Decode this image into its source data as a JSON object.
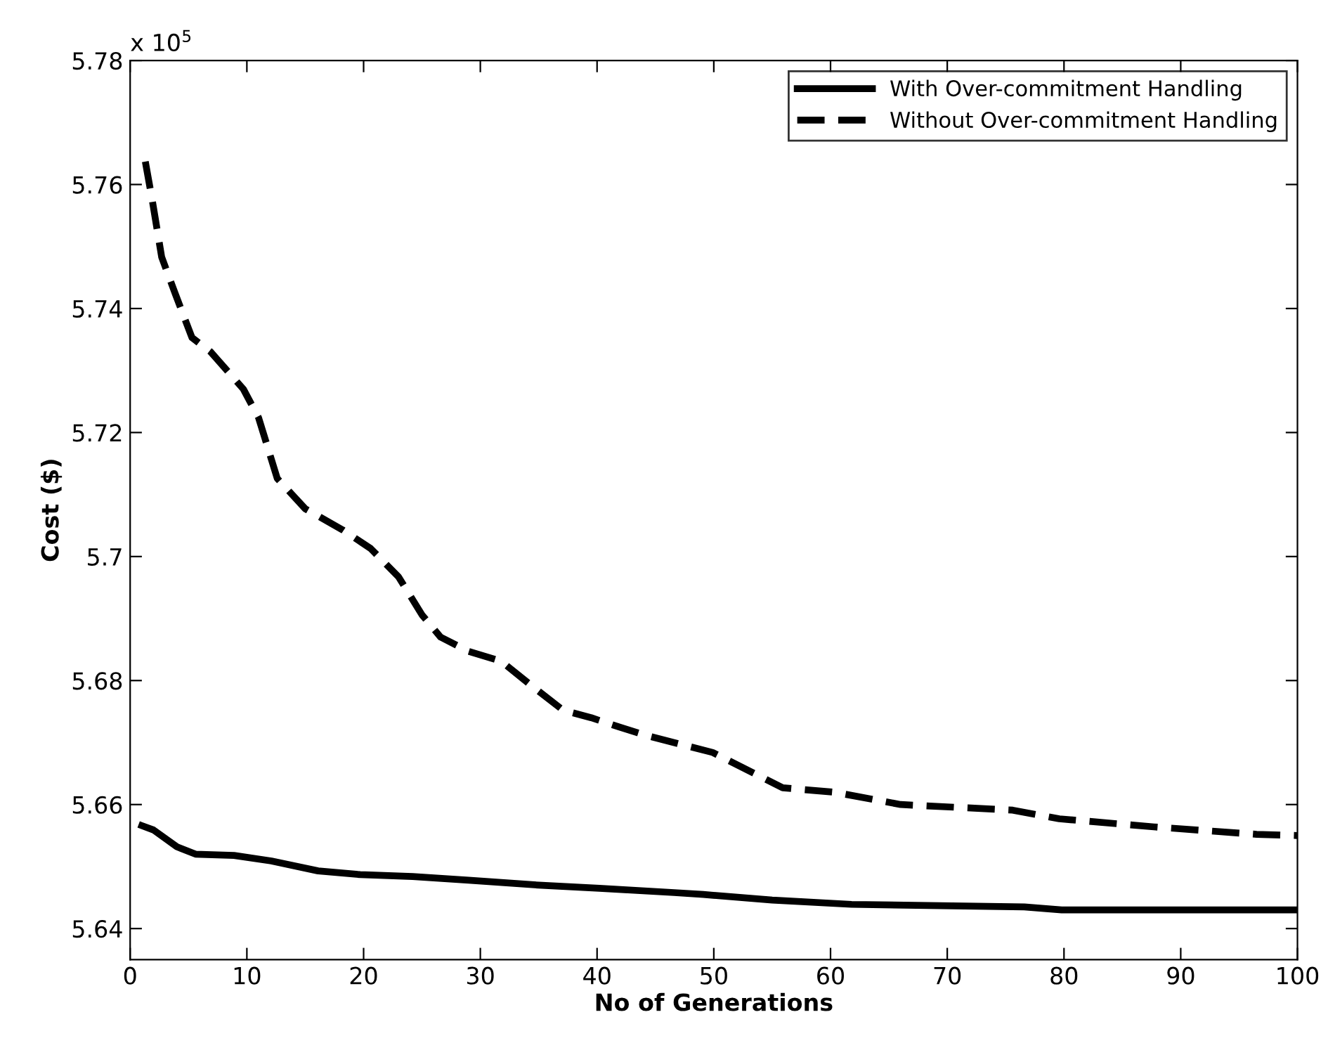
{
  "chart_data": {
    "type": "line",
    "xlabel": "No of Generations",
    "ylabel": "Cost ($)",
    "annotations": [
      "x 10$^{5}$"
    ],
    "xlim": [
      0,
      100
    ],
    "xticks": [
      0,
      10,
      20,
      30,
      40,
      50,
      60,
      70,
      80,
      90,
      100
    ],
    "ylim": [
      5.635,
      5.78
    ],
    "yticks": [
      5.64,
      5.66,
      5.68,
      5.7,
      5.72,
      5.74,
      5.76,
      5.78
    ],
    "grid": false,
    "legend": "top right",
    "marker": "none",
    "series": [
      {
        "name": "With Over-commitment Handling",
        "color": "#000000",
        "line_style": "solid",
        "x": [
          1,
          2,
          4,
          5.6,
          8.9,
          12.1,
          16.1,
          19.7,
          24.2,
          29,
          35,
          40.2,
          46.6,
          49.1,
          55,
          61.8,
          76.6,
          79.8,
          100
        ],
        "values": [
          5.6566,
          5.6559,
          5.6532,
          5.652,
          5.6518,
          5.6509,
          5.6493,
          5.6487,
          5.6484,
          5.6478,
          5.647,
          5.6465,
          5.6458,
          5.6455,
          5.6446,
          5.6439,
          5.6435,
          5.643,
          5.643
        ]
      },
      {
        "name": "Without Over-commitment Handling",
        "color": "#000000",
        "line_style": "dashed",
        "x": [
          1.3,
          1.9,
          2.7,
          3.9,
          5.3,
          6.9,
          9.7,
          11,
          12.6,
          15,
          18.2,
          20.6,
          23,
          25,
          26.6,
          29,
          31.8,
          34.3,
          37.1,
          39.5,
          41.9,
          44.3,
          49.9,
          55.9,
          60.3,
          66,
          75.6,
          79.6,
          87.7,
          96.5,
          100
        ],
        "values": [
          5.7637,
          5.7574,
          5.7483,
          5.7422,
          5.7353,
          5.733,
          5.727,
          5.7224,
          5.7126,
          5.7077,
          5.7043,
          5.7013,
          5.6967,
          5.6906,
          5.687,
          5.6847,
          5.6831,
          5.6793,
          5.6752,
          5.674,
          5.6725,
          5.6711,
          5.6684,
          5.6627,
          5.662,
          5.66,
          5.6591,
          5.6577,
          5.6564,
          5.6552,
          5.655
        ]
      }
    ]
  }
}
